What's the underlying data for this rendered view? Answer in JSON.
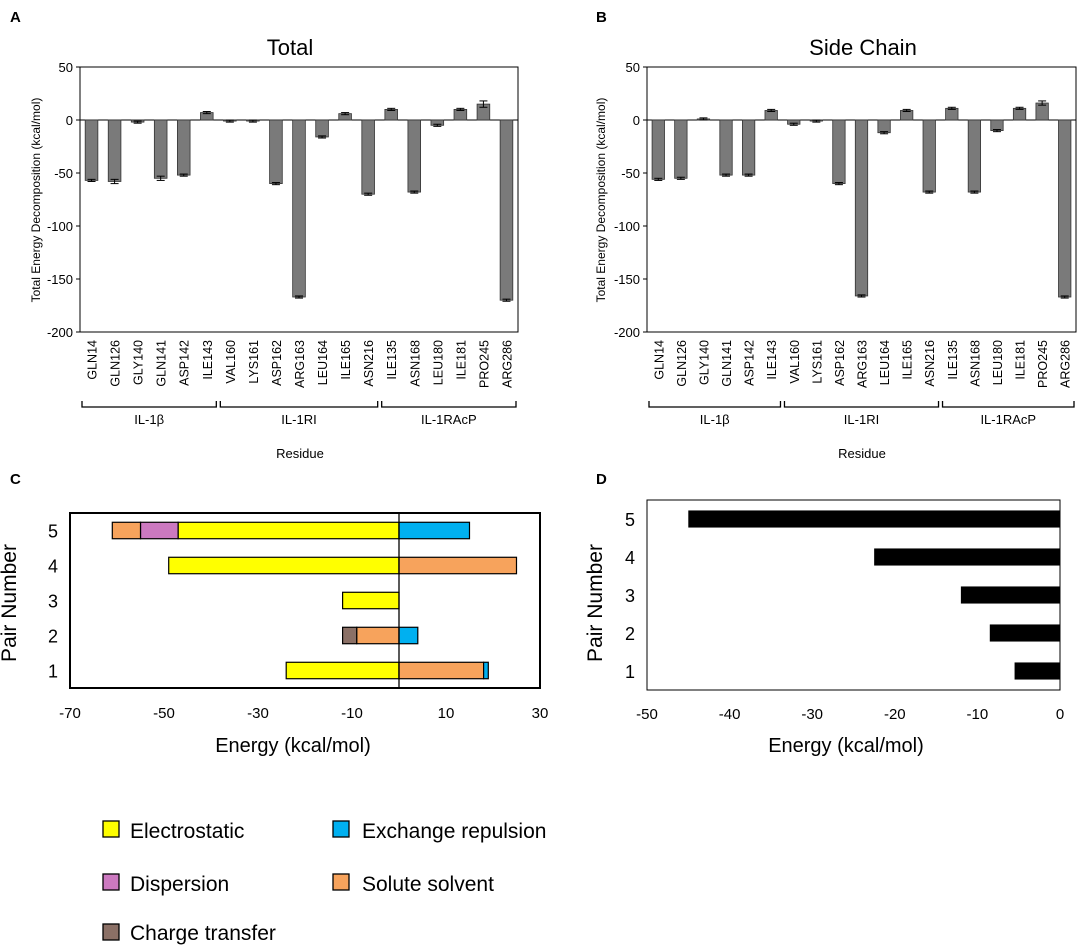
{
  "colors": {
    "bar_gray": "#7a7a7a",
    "black": "#000000",
    "electrostatic": "#ffff00",
    "exchange_repulsion": "#00b0f0",
    "dispersion": "#cc79c0",
    "solute_solvent": "#f7a35c",
    "charge_transfer": "#8b7066"
  },
  "legend": {
    "items": [
      {
        "key": "electrostatic",
        "label": "Electrostatic"
      },
      {
        "key": "exchange_repulsion",
        "label": "Exchange repulsion"
      },
      {
        "key": "dispersion",
        "label": "Dispersion"
      },
      {
        "key": "solute_solvent",
        "label": "Solute solvent"
      },
      {
        "key": "charge_transfer",
        "label": "Charge transfer"
      }
    ]
  },
  "chart_data": [
    {
      "panel": "A",
      "type": "bar",
      "title": "Total",
      "xlabel": "Residue",
      "ylabel": "Total Energy Decomposition (kcal/mol)",
      "ylim": [
        -200,
        50
      ],
      "yticks": [
        50,
        0,
        -50,
        -100,
        -150,
        -200
      ],
      "categories": [
        "GLN14",
        "GLN126",
        "GLY140",
        "GLN141",
        "ASP142",
        "ILE143",
        "VAL160",
        "LYS161",
        "ASP162",
        "ARG163",
        "LEU164",
        "ILE165",
        "ASN216",
        "ILE135",
        "ASN168",
        "LEU180",
        "ILE181",
        "PRO245",
        "ARG286"
      ],
      "values": [
        -57,
        -58,
        -2,
        -55,
        -52,
        7,
        -1,
        -1,
        -60,
        -167,
        -16,
        6,
        -70,
        10,
        -68,
        -5,
        10,
        15,
        -170
      ],
      "errors": [
        1,
        2,
        1,
        2,
        1,
        1,
        1,
        1,
        1,
        1,
        1,
        1,
        1,
        1,
        1,
        1,
        1,
        3,
        1
      ],
      "groups": [
        {
          "label": "IL-1β",
          "start": 0,
          "end": 5
        },
        {
          "label": "IL-1RI",
          "start": 6,
          "end": 12
        },
        {
          "label": "IL-1RAcP",
          "start": 13,
          "end": 18
        }
      ]
    },
    {
      "panel": "B",
      "type": "bar",
      "title": "Side Chain",
      "xlabel": "Residue",
      "ylabel": "Total Energy Decomposition (kcal/mol)",
      "ylim": [
        -200,
        50
      ],
      "yticks": [
        50,
        0,
        -50,
        -100,
        -150,
        -200
      ],
      "categories": [
        "GLN14",
        "GLN126",
        "GLY140",
        "GLN141",
        "ASP142",
        "ILE143",
        "VAL160",
        "LYS161",
        "ASP162",
        "ARG163",
        "LEU164",
        "ILE165",
        "ASN216",
        "ILE135",
        "ASN168",
        "LEU180",
        "ILE181",
        "PRO245",
        "ARG286"
      ],
      "values": [
        -56,
        -55,
        1,
        -52,
        -52,
        9,
        -4,
        -1,
        -60,
        -166,
        -12,
        9,
        -68,
        11,
        -68,
        -10,
        11,
        16,
        -167
      ],
      "errors": [
        1,
        1,
        1,
        1,
        1,
        1,
        1,
        1,
        1,
        1,
        1,
        1,
        1,
        1,
        1,
        1,
        1,
        2,
        1
      ],
      "groups": [
        {
          "label": "IL-1β",
          "start": 0,
          "end": 5
        },
        {
          "label": "IL-1RI",
          "start": 6,
          "end": 12
        },
        {
          "label": "IL-1RAcP",
          "start": 13,
          "end": 18
        }
      ]
    },
    {
      "panel": "C",
      "type": "bar",
      "orientation": "horizontal-stacked",
      "xlabel": "Energy (kcal/mol)",
      "ylabel": "Pair Number",
      "xlim": [
        -70,
        30
      ],
      "xticks": [
        -70,
        -50,
        -30,
        -10,
        10,
        30
      ],
      "categories": [
        "1",
        "2",
        "3",
        "4",
        "5"
      ],
      "series": [
        {
          "name": "Electrostatic",
          "key": "electrostatic",
          "values": [
            -24,
            0,
            -12,
            -49,
            -47
          ]
        },
        {
          "name": "Dispersion",
          "key": "dispersion",
          "values": [
            0,
            0,
            0,
            0,
            -8
          ]
        },
        {
          "name": "Solute solvent",
          "key": "solute_solvent",
          "values": [
            18,
            -9,
            0,
            25,
            -6
          ]
        },
        {
          "name": "Charge transfer",
          "key": "charge_transfer",
          "values": [
            0,
            -3,
            0,
            0,
            0
          ]
        },
        {
          "name": "Exchange repulsion",
          "key": "exchange_repulsion",
          "values": [
            1,
            4,
            0,
            0,
            15
          ]
        }
      ]
    },
    {
      "panel": "D",
      "type": "bar",
      "orientation": "horizontal",
      "xlabel": "Energy (kcal/mol)",
      "ylabel": "Pair Number",
      "xlim": [
        -50,
        0
      ],
      "xticks": [
        -50,
        -40,
        -30,
        -20,
        -10,
        0
      ],
      "categories": [
        "1",
        "2",
        "3",
        "4",
        "5"
      ],
      "values": [
        -5.5,
        -8.5,
        -12,
        -22.5,
        -45
      ]
    }
  ]
}
